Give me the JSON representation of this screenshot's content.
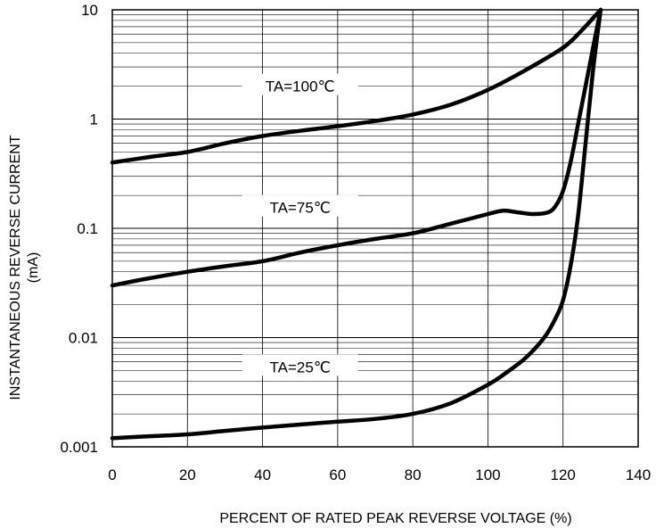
{
  "chart_data": {
    "type": "line",
    "title": "",
    "xlabel": "PERCENT OF RATED PEAK REVERSE VOLTAGE (%)",
    "ylabel_line1": "INSTANTANEOUS REVERSE CURRENT",
    "ylabel_line2": "(mA)",
    "xlim": [
      0,
      140
    ],
    "ylim": [
      0.001,
      10
    ],
    "y_scale": "log",
    "grid": true,
    "x_ticks": [
      0,
      20,
      40,
      60,
      80,
      100,
      120,
      140
    ],
    "x_tick_labels": [
      "0",
      "20",
      "40",
      "60",
      "80",
      "100",
      "120",
      "140"
    ],
    "y_ticks": [
      0.001,
      0.01,
      0.1,
      1,
      10
    ],
    "y_tick_labels": [
      "0.001",
      "0.01",
      "0.1",
      "1",
      "10"
    ],
    "line_color": "#000000",
    "series": [
      {
        "name": "TA=100℃",
        "label_x": 50,
        "label_y": 2.0,
        "x": [
          0,
          10,
          20,
          30,
          40,
          50,
          60,
          70,
          80,
          90,
          100,
          110,
          120,
          125,
          130
        ],
        "y": [
          0.4,
          0.45,
          0.5,
          0.6,
          0.7,
          0.78,
          0.86,
          0.96,
          1.1,
          1.35,
          1.85,
          2.8,
          4.5,
          6.5,
          10
        ]
      },
      {
        "name": "TA=75℃",
        "label_x": 50,
        "label_y": 0.155,
        "x": [
          0,
          10,
          20,
          30,
          40,
          50,
          60,
          70,
          80,
          90,
          100,
          104,
          108,
          112,
          116,
          118,
          120,
          122,
          124,
          126,
          128,
          130
        ],
        "y": [
          0.03,
          0.035,
          0.04,
          0.045,
          0.05,
          0.06,
          0.07,
          0.08,
          0.09,
          0.11,
          0.135,
          0.145,
          0.14,
          0.135,
          0.14,
          0.16,
          0.22,
          0.4,
          0.9,
          2.0,
          4.5,
          10
        ]
      },
      {
        "name": "TA=25℃",
        "label_x": 50,
        "label_y": 0.0054,
        "x": [
          0,
          10,
          20,
          30,
          40,
          50,
          60,
          70,
          80,
          90,
          100,
          105,
          110,
          115,
          118,
          120,
          122,
          124,
          126,
          128,
          130
        ],
        "y": [
          0.0012,
          0.00125,
          0.0013,
          0.0014,
          0.0015,
          0.0016,
          0.0017,
          0.0018,
          0.002,
          0.0025,
          0.0037,
          0.0048,
          0.0065,
          0.01,
          0.015,
          0.022,
          0.045,
          0.13,
          0.6,
          2.8,
          10
        ]
      }
    ]
  }
}
